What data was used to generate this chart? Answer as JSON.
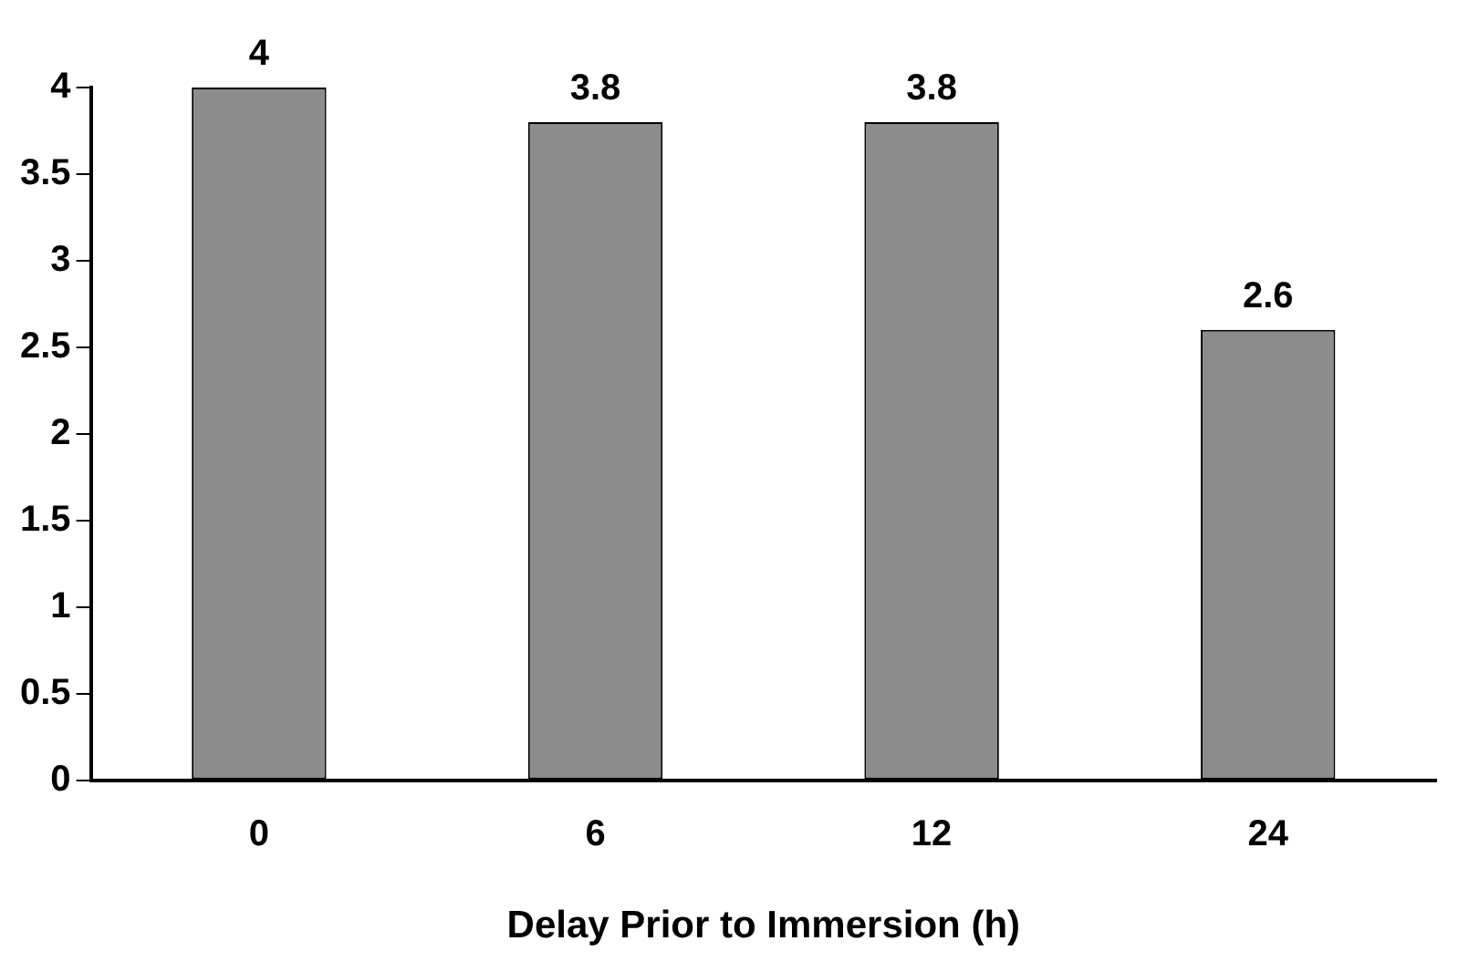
{
  "chart_data": {
    "type": "bar",
    "xlabel": "Delay Prior to Immersion (h)",
    "categories": [
      "0",
      "6",
      "12",
      "24"
    ],
    "values": [
      4,
      3.8,
      3.8,
      2.6
    ],
    "color": "#8c8c8c",
    "ylim": [
      0,
      4
    ],
    "yticks": [
      0,
      0.5,
      1,
      1.5,
      2,
      2.5,
      3,
      3.5,
      4
    ],
    "data_labels": true,
    "grid": false,
    "legend": false
  }
}
